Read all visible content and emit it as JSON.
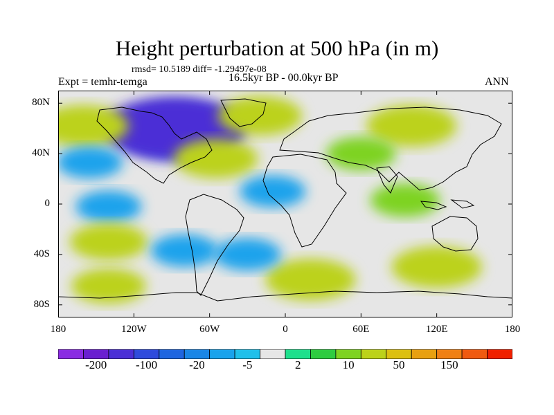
{
  "header": {
    "title": "Height perturbation at 500 hPa (in m)",
    "stats": "rmsd= 10.5189 diff= -1.29497e-08",
    "experiment": "Expt = temhr-temga",
    "period": "16.5kyr BP - 00.0kyr BP",
    "season": "ANN"
  },
  "map": {
    "projection": "cylindrical-equidistant",
    "lon_range": [
      -180,
      180
    ],
    "lat_range": [
      -90,
      90
    ],
    "lat_ticks": [
      {
        "value": 80,
        "label": "80N"
      },
      {
        "value": 40,
        "label": "40N"
      },
      {
        "value": 0,
        "label": "0"
      },
      {
        "value": -40,
        "label": "40S"
      },
      {
        "value": -80,
        "label": "80S"
      }
    ],
    "lon_ticks": [
      {
        "value": -180,
        "label": "180"
      },
      {
        "value": -120,
        "label": "120W"
      },
      {
        "value": -60,
        "label": "60W"
      },
      {
        "value": 0,
        "label": "0"
      },
      {
        "value": 60,
        "label": "60E"
      },
      {
        "value": 120,
        "label": "120E"
      },
      {
        "value": 180,
        "label": "180"
      }
    ],
    "background_color": "#e6e6e6",
    "coastline_color": "#000000"
  },
  "colorbar": {
    "colors": [
      "#8a2be2",
      "#6a1fd0",
      "#4b2fd6",
      "#2f4bdc",
      "#1f66e0",
      "#1a86e6",
      "#1aa3ec",
      "#20c0ea",
      "#e6e6e6",
      "#1ee08c",
      "#2ecc40",
      "#7ed321",
      "#bcd21a",
      "#dcc010",
      "#e8a010",
      "#f08014",
      "#f05a10",
      "#f02000"
    ],
    "labels": [
      {
        "text": "-200",
        "index": 1
      },
      {
        "text": "-100",
        "index": 3
      },
      {
        "text": "-20",
        "index": 5
      },
      {
        "text": "-5",
        "index": 7
      },
      {
        "text": "2",
        "index": 9
      },
      {
        "text": "10",
        "index": 11
      },
      {
        "text": "50",
        "index": 13
      },
      {
        "text": "150",
        "index": 15
      }
    ]
  },
  "field_anomalies": [
    {
      "region": "north-america-trough",
      "lon": -85,
      "lat": 58,
      "value": -90
    },
    {
      "region": "north-america-trough-core",
      "lon": -88,
      "lat": 60,
      "value": -130
    },
    {
      "region": "north-pacific-ridge",
      "lon": -160,
      "lat": 62,
      "value": 45
    },
    {
      "region": "north-atlantic-ridge",
      "lon": -20,
      "lat": 70,
      "value": 35
    },
    {
      "region": "siberia-ridge",
      "lon": 100,
      "lat": 62,
      "value": 45
    },
    {
      "region": "eurasia-ridge",
      "lon": 60,
      "lat": 40,
      "value": 12
    },
    {
      "region": "subtropical-atlantic-ridge",
      "lon": -55,
      "lat": 36,
      "value": 35
    },
    {
      "region": "north-pacific-low",
      "lon": -155,
      "lat": 33,
      "value": -6
    },
    {
      "region": "tropical-pacific-low",
      "lon": -140,
      "lat": -2,
      "value": -6
    },
    {
      "region": "tropical-atlantic-low",
      "lon": -10,
      "lat": 10,
      "value": -6
    },
    {
      "region": "indian-ocean-ridge",
      "lon": 95,
      "lat": 3,
      "value": 12
    },
    {
      "region": "south-pacific-ridge",
      "lon": -140,
      "lat": -30,
      "value": 25
    },
    {
      "region": "south-pacific-trough",
      "lon": -80,
      "lat": -37,
      "value": -8
    },
    {
      "region": "southern-indian-ridge",
      "lon": 120,
      "lat": -50,
      "value": 45
    },
    {
      "region": "southern-atlantic-ridge",
      "lon": 20,
      "lat": -60,
      "value": 45
    },
    {
      "region": "southern-pacific-ridge",
      "lon": -140,
      "lat": -65,
      "value": 20
    },
    {
      "region": "southern-ocean-trough",
      "lon": -30,
      "lat": -40,
      "value": -8
    }
  ]
}
